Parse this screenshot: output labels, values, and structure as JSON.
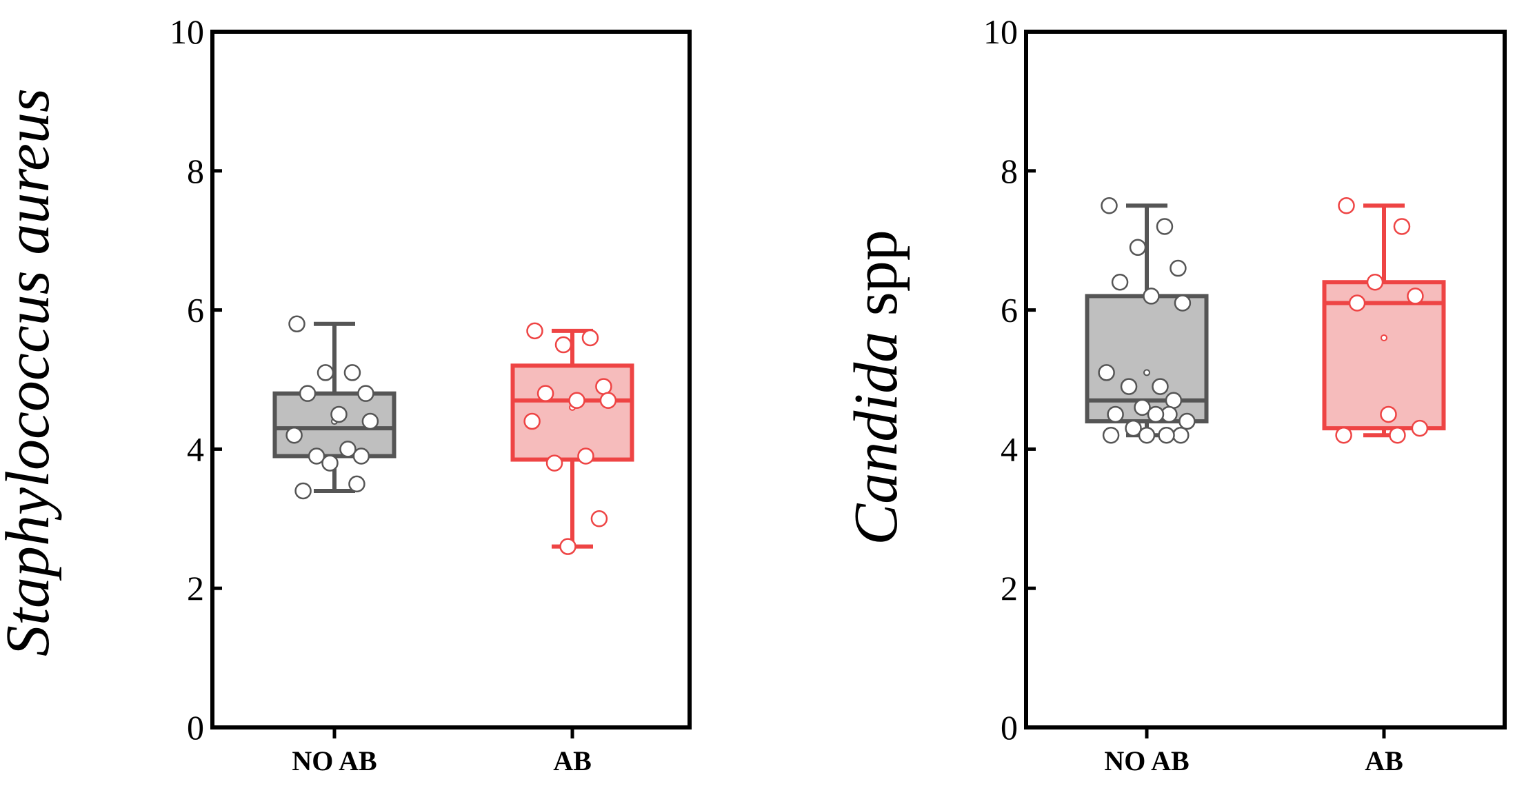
{
  "chart_data": [
    {
      "type": "box",
      "ylabel": "Staphylococcus aureus",
      "ylabel_parts": [
        {
          "text": "Staphylococcus aureus",
          "italic": true
        }
      ],
      "ylim": [
        0,
        10
      ],
      "yticks": [
        "0",
        "2",
        "4",
        "6",
        "8",
        "10"
      ],
      "categories": [
        "NO AB",
        "AB"
      ],
      "series": [
        {
          "category": "NO AB",
          "color": "#555555",
          "fill": "#bfbfbf",
          "box": {
            "whisker_low": 3.4,
            "q1": 3.9,
            "median": 4.3,
            "mean": 4.4,
            "q3": 4.8,
            "whisker_high": 5.8
          },
          "points": [
            5.8,
            5.1,
            5.1,
            4.8,
            4.8,
            4.5,
            4.4,
            4.2,
            4.0,
            3.9,
            3.9,
            3.8,
            3.5,
            3.4
          ]
        },
        {
          "category": "AB",
          "color": "#ee4444",
          "fill": "#f6bcbc",
          "box": {
            "whisker_low": 2.6,
            "q1": 3.85,
            "median": 4.7,
            "mean": 4.6,
            "q3": 5.2,
            "whisker_high": 5.7
          },
          "points": [
            5.7,
            5.6,
            5.5,
            4.9,
            4.8,
            4.7,
            4.7,
            4.4,
            3.9,
            3.8,
            3.0,
            2.6
          ]
        }
      ]
    },
    {
      "type": "box",
      "ylabel": "Candida spp",
      "ylabel_parts": [
        {
          "text": "Candida",
          "italic": true
        },
        {
          "text": " spp",
          "italic": false
        }
      ],
      "ylim": [
        0,
        10
      ],
      "yticks": [
        "0",
        "2",
        "4",
        "6",
        "8",
        "10"
      ],
      "categories": [
        "NO AB",
        "AB"
      ],
      "series": [
        {
          "category": "NO AB",
          "color": "#555555",
          "fill": "#bfbfbf",
          "box": {
            "whisker_low": 4.2,
            "q1": 4.4,
            "median": 4.7,
            "mean": 5.1,
            "q3": 6.2,
            "whisker_high": 7.5
          },
          "points": [
            7.5,
            7.2,
            6.9,
            6.6,
            6.4,
            6.2,
            6.1,
            5.1,
            4.9,
            4.9,
            4.7,
            4.6,
            4.5,
            4.5,
            4.5,
            4.4,
            4.3,
            4.2,
            4.2,
            4.2,
            4.2
          ]
        },
        {
          "category": "AB",
          "color": "#ee4444",
          "fill": "#f6bcbc",
          "box": {
            "whisker_low": 4.2,
            "q1": 4.3,
            "median": 6.1,
            "mean": 5.6,
            "q3": 6.4,
            "whisker_high": 7.5
          },
          "points": [
            7.5,
            7.2,
            6.4,
            6.2,
            6.1,
            4.5,
            4.3,
            4.2,
            4.2
          ]
        }
      ]
    }
  ]
}
